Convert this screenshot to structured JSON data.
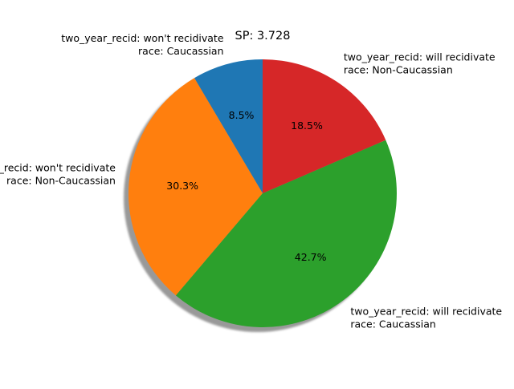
{
  "chart_data": {
    "type": "pie",
    "title": "SP: 3.728",
    "start_angle_deg": 90,
    "direction": "counterclockwise",
    "shadow": true,
    "slices": [
      {
        "label_line1": "two_year_recid: won't recidivate",
        "label_line2": "race: Caucassian",
        "value": 8.5,
        "pct_text": "8.5%",
        "color": "#1f77b4"
      },
      {
        "label_line1": "two_year_recid: won't recidivate",
        "label_line2": "race: Non-Caucassian",
        "value": 30.3,
        "pct_text": "30.3%",
        "color": "#ff7f0e"
      },
      {
        "label_line1": "two_year_recid: will recidivate",
        "label_line2": "race: Caucassian",
        "value": 42.7,
        "pct_text": "42.7%",
        "color": "#2ca02c"
      },
      {
        "label_line1": "two_year_recid: will recidivate",
        "label_line2": "race: Non-Caucassian",
        "value": 18.5,
        "pct_text": "18.5%",
        "color": "#d62728"
      }
    ]
  }
}
